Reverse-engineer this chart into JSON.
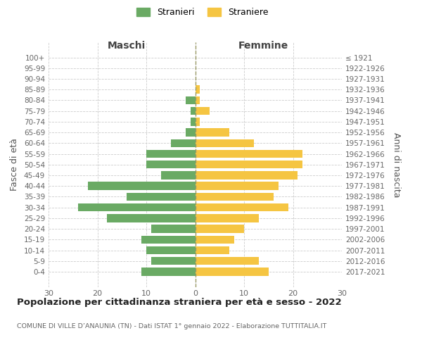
{
  "age_groups": [
    "100+",
    "95-99",
    "90-94",
    "85-89",
    "80-84",
    "75-79",
    "70-74",
    "65-69",
    "60-64",
    "55-59",
    "50-54",
    "45-49",
    "40-44",
    "35-39",
    "30-34",
    "25-29",
    "20-24",
    "15-19",
    "10-14",
    "5-9",
    "0-4"
  ],
  "birth_years": [
    "≤ 1921",
    "1922-1926",
    "1927-1931",
    "1932-1936",
    "1937-1941",
    "1942-1946",
    "1947-1951",
    "1952-1956",
    "1957-1961",
    "1962-1966",
    "1967-1971",
    "1972-1976",
    "1977-1981",
    "1982-1986",
    "1987-1991",
    "1992-1996",
    "1997-2001",
    "2002-2006",
    "2007-2011",
    "2012-2016",
    "2017-2021"
  ],
  "maschi": [
    0,
    0,
    0,
    0,
    2,
    1,
    1,
    2,
    5,
    10,
    10,
    7,
    22,
    14,
    24,
    18,
    9,
    11,
    10,
    9,
    11
  ],
  "femmine": [
    0,
    0,
    0,
    1,
    1,
    3,
    1,
    7,
    12,
    22,
    22,
    21,
    17,
    16,
    19,
    13,
    10,
    8,
    7,
    13,
    15
  ],
  "maschi_color": "#6aaa64",
  "femmine_color": "#f5c542",
  "background_color": "#ffffff",
  "grid_color": "#cccccc",
  "title": "Popolazione per cittadinanza straniera per età e sesso - 2022",
  "subtitle": "COMUNE DI VILLE D’ANAUNIA (TN) - Dati ISTAT 1° gennaio 2022 - Elaborazione TUTTITALIA.IT",
  "ylabel_left": "Fasce di età",
  "ylabel_right": "Anni di nascita",
  "label_maschi": "Maschi",
  "label_femmine": "Femmine",
  "legend_maschi": "Stranieri",
  "legend_femmine": "Straniere",
  "xlim": 30
}
